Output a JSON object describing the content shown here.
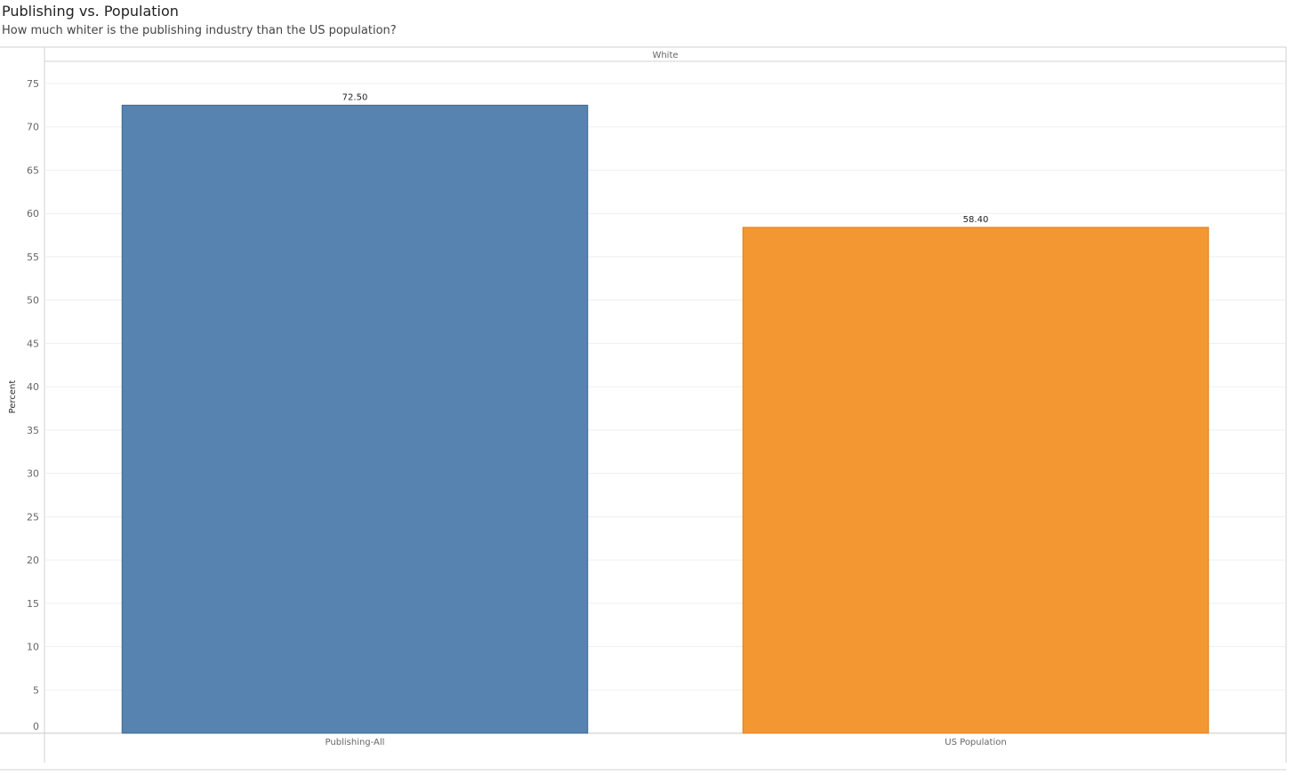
{
  "title": "Publishing vs. Population",
  "subtitle": "How much whiter is the publishing industry than the US population?",
  "chart_data": {
    "type": "bar",
    "header": "White",
    "categories": [
      "Publishing-All",
      "US Population"
    ],
    "values": [
      72.5,
      58.4
    ],
    "value_labels": [
      "72.50",
      "58.40"
    ],
    "colors": [
      "#5683b0",
      "#f39732"
    ],
    "ylabel": "Percent",
    "xlabel": "",
    "ylim": [
      0,
      75
    ],
    "yticks": [
      0,
      5,
      10,
      15,
      20,
      25,
      30,
      35,
      40,
      45,
      50,
      55,
      60,
      65,
      70,
      75
    ],
    "grid": true
  }
}
